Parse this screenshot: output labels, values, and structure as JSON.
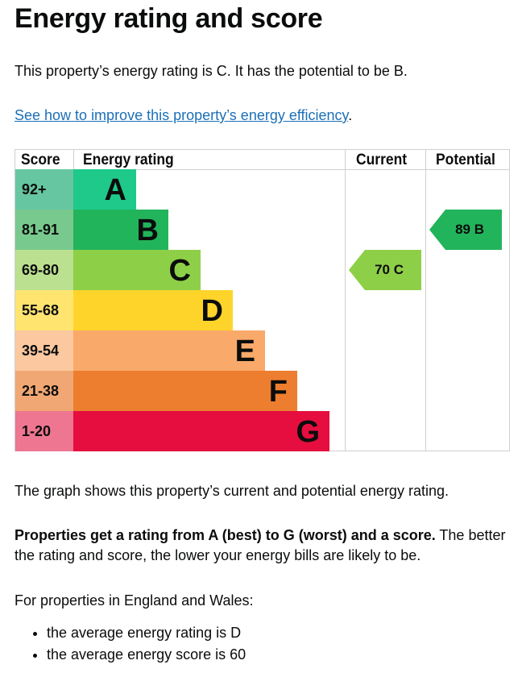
{
  "title": "Energy rating and score",
  "intro": "This property’s energy rating is C. It has the potential to be B.",
  "link": "See how to improve this property’s energy efficiency",
  "link_suffix": ".",
  "chart_data": {
    "type": "table",
    "headers": [
      "Score",
      "Energy rating",
      "Current",
      "Potential"
    ],
    "bands": [
      {
        "score": "92+",
        "rating": "A",
        "color": "#1fc98a",
        "score_color": "#66c6a1"
      },
      {
        "score": "81-91",
        "rating": "B",
        "color": "#22b45b",
        "score_color": "#78c98d"
      },
      {
        "score": "69-80",
        "rating": "C",
        "color": "#8ecf48",
        "score_color": "#bbe08f"
      },
      {
        "score": "55-68",
        "rating": "D",
        "color": "#ffd42a",
        "score_color": "#ffe470"
      },
      {
        "score": "39-54",
        "rating": "E",
        "color": "#f9a96a",
        "score_color": "#fbc8a0"
      },
      {
        "score": "21-38",
        "rating": "F",
        "color": "#ee7e2f",
        "score_color": "#f1a773"
      },
      {
        "score": "1-20",
        "rating": "G",
        "color": "#e50e3e",
        "score_color": "#ee7690"
      }
    ],
    "current": {
      "score": 70,
      "rating": "C",
      "label": "70  C",
      "color": "#8ecf48"
    },
    "potential": {
      "score": 89,
      "rating": "B",
      "label": "89  B",
      "color": "#22b45b"
    }
  },
  "graph_text": "The graph shows this property’s current and potential energy rating.",
  "bold_text": "Properties get a rating from A (best) to G (worst) and a score.",
  "rest_text": " The better the rating and score, the lower your energy bills are likely to be.",
  "region_text": "For properties in England and Wales:",
  "bullets": [
    "the average energy rating is D",
    "the average energy score is 60"
  ]
}
